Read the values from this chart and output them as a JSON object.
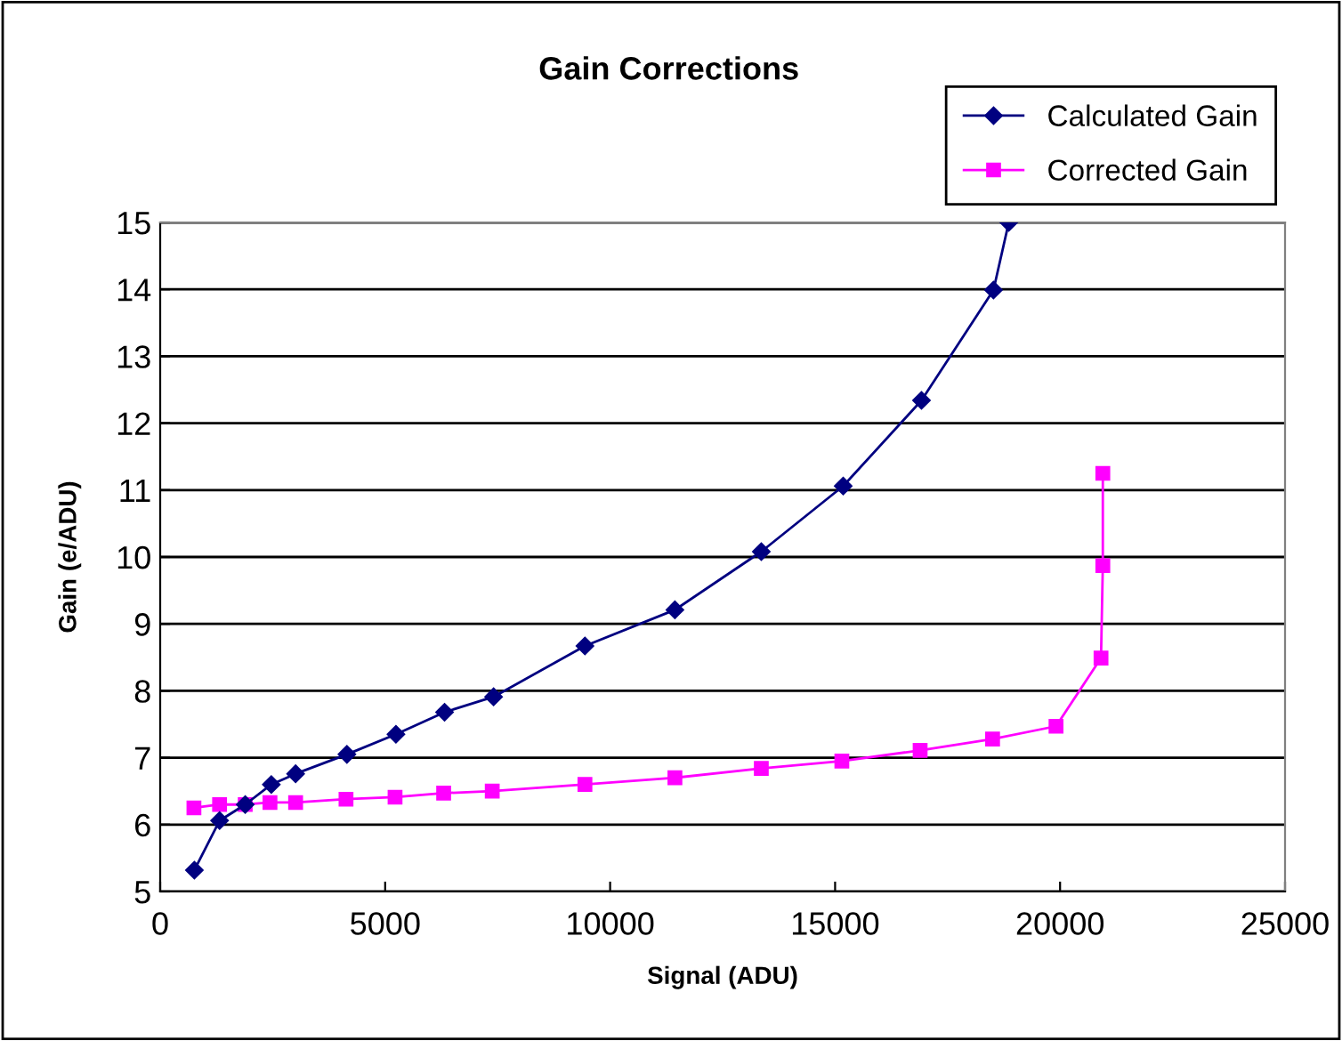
{
  "chart_data": {
    "type": "line",
    "title": "Gain Corrections",
    "xlabel": "Signal (ADU)",
    "ylabel": "Gain (e/ADU)",
    "xlim": [
      0,
      25000
    ],
    "xticks": [
      0,
      5000,
      10000,
      15000,
      20000,
      25000
    ],
    "ylim": [
      5,
      15
    ],
    "yticks": [
      5,
      6,
      7,
      8,
      9,
      10,
      11,
      12,
      13,
      14,
      15
    ],
    "grid": "y",
    "legend": "top right",
    "series": [
      {
        "name": "Calculated Gain",
        "color": "#000080",
        "marker": "diamond",
        "x": [
          760,
          1320,
          1890,
          2470,
          3010,
          4150,
          5240,
          6320,
          7410,
          9440,
          11440,
          13360,
          15180,
          16920,
          18520,
          18860
        ],
        "values": [
          5.32,
          6.06,
          6.3,
          6.6,
          6.76,
          7.05,
          7.35,
          7.68,
          7.91,
          8.67,
          9.21,
          10.08,
          11.06,
          12.34,
          13.99,
          15.0
        ]
      },
      {
        "name": "Corrected Gain",
        "color": "#ff00ff",
        "marker": "square",
        "x": [
          750,
          1320,
          1890,
          2440,
          3010,
          4130,
          5220,
          6300,
          7380,
          9440,
          11440,
          13360,
          15150,
          16890,
          18500,
          19910,
          20910,
          20950,
          20950
        ],
        "values": [
          6.25,
          6.3,
          6.3,
          6.33,
          6.33,
          6.38,
          6.41,
          6.47,
          6.5,
          6.6,
          6.7,
          6.84,
          6.95,
          7.11,
          7.28,
          7.47,
          8.49,
          9.87,
          11.25
        ]
      }
    ]
  }
}
